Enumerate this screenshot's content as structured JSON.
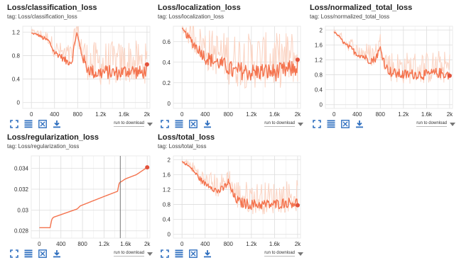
{
  "download_label": "run to download",
  "colors": {
    "line": "#f4734e",
    "band": "#fbd3c2",
    "grid": "#dddddd",
    "icon": "#2f6fbf"
  },
  "toolbar_icons": [
    "fit-domain-icon",
    "data-table-icon",
    "expand-icon",
    "download-icon"
  ],
  "chart_data": [
    {
      "type": "line",
      "title": "Loss/classification_loss",
      "tag": "tag: Loss/classification_loss",
      "xlim": [
        -150,
        2050
      ],
      "ylim": [
        -0.1,
        1.3
      ],
      "xticks": [
        0,
        400,
        800,
        1200,
        1600,
        2000
      ],
      "xtick_labels": [
        "0",
        "400",
        "800",
        "1.2k",
        "1.6k",
        "2k"
      ],
      "yticks": [
        0,
        0.4,
        0.8,
        1.2
      ],
      "ytick_labels": [
        "0",
        "0.4",
        "0.8",
        "1.2"
      ],
      "series": [
        {
          "x": [
            0,
            100,
            200,
            300,
            400,
            500,
            600,
            700,
            780,
            850,
            950,
            1100,
            1300,
            1500,
            1700,
            1900,
            2000
          ],
          "y": [
            1.18,
            1.16,
            1.1,
            1.05,
            0.85,
            0.8,
            0.7,
            0.7,
            1.2,
            0.9,
            0.6,
            0.5,
            0.52,
            0.5,
            0.55,
            0.5,
            0.55
          ],
          "band": [
            0.05,
            0.05,
            0.1,
            0.1,
            0.15,
            0.15,
            0.2,
            0.2,
            0.2,
            0.25,
            0.3,
            0.35,
            0.35,
            0.35,
            0.35,
            0.35,
            0.3
          ]
        }
      ]
    },
    {
      "type": "line",
      "title": "Loss/localization_loss",
      "tag": "tag: Loss/localization_loss",
      "xlim": [
        -150,
        2050
      ],
      "ylim": [
        -0.05,
        0.75
      ],
      "xticks": [
        0,
        400,
        800,
        1200,
        1600,
        2000
      ],
      "xtick_labels": [
        "0",
        "400",
        "800",
        "1.2k",
        "1.6k",
        "2k"
      ],
      "yticks": [
        0,
        0.2,
        0.4,
        0.6
      ],
      "ytick_labels": [
        "0",
        "0.2",
        "0.4",
        "0.6"
      ],
      "series": [
        {
          "x": [
            0,
            100,
            200,
            300,
            400,
            500,
            600,
            700,
            800,
            900,
            1000,
            1200,
            1400,
            1600,
            1800,
            2000
          ],
          "y": [
            0.72,
            0.65,
            0.58,
            0.52,
            0.45,
            0.42,
            0.4,
            0.38,
            0.35,
            0.3,
            0.32,
            0.3,
            0.31,
            0.3,
            0.32,
            0.35
          ],
          "band": [
            0.05,
            0.1,
            0.15,
            0.15,
            0.2,
            0.2,
            0.2,
            0.2,
            0.25,
            0.25,
            0.25,
            0.25,
            0.25,
            0.25,
            0.25,
            0.25
          ]
        }
      ]
    },
    {
      "type": "line",
      "title": "Loss/normalized_total_loss",
      "tag": "tag: Loss/normalized_total_loss",
      "xlim": [
        -150,
        2050
      ],
      "ylim": [
        -0.1,
        2.1
      ],
      "xticks": [
        0,
        400,
        800,
        1200,
        1600,
        2000
      ],
      "xtick_labels": [
        "0",
        "400",
        "800",
        "1.2k",
        "1.6k",
        "2k"
      ],
      "yticks": [
        0,
        0.4,
        0.8,
        1.2,
        1.6,
        2.0
      ],
      "ytick_labels": [
        "0",
        "0.4",
        "0.8",
        "1.2",
        "1.6",
        "2"
      ],
      "series": [
        {
          "x": [
            0,
            100,
            200,
            300,
            400,
            500,
            600,
            700,
            800,
            900,
            1000,
            1200,
            1400,
            1600,
            1800,
            2000
          ],
          "y": [
            1.95,
            1.8,
            1.6,
            1.5,
            1.35,
            1.3,
            1.2,
            1.2,
            1.5,
            1.0,
            0.85,
            0.8,
            0.82,
            0.8,
            0.85,
            0.8
          ],
          "band": [
            0.05,
            0.1,
            0.15,
            0.2,
            0.2,
            0.25,
            0.3,
            0.3,
            0.3,
            0.35,
            0.4,
            0.4,
            0.4,
            0.4,
            0.4,
            0.4
          ]
        }
      ]
    },
    {
      "type": "line",
      "title": "Loss/regularization_loss",
      "tag": "tag: Loss/regularization_loss",
      "xlim": [
        -150,
        2050
      ],
      "ylim": [
        0.0273,
        0.0352
      ],
      "xticks": [
        0,
        400,
        800,
        1200,
        1600,
        2000
      ],
      "xtick_labels": [
        "0",
        "400",
        "800",
        "1.2k",
        "1.6k",
        "2k"
      ],
      "yticks": [
        0.028,
        0.03,
        0.032,
        0.034
      ],
      "ytick_labels": [
        "0.028",
        "0.03",
        "0.032",
        "0.034"
      ],
      "series": [
        {
          "x": [
            0,
            200,
            230,
            260,
            700,
            760,
            1200,
            1400,
            1450,
            1480,
            1600,
            1800,
            2000
          ],
          "y": [
            0.0283,
            0.0283,
            0.0291,
            0.0293,
            0.0301,
            0.0304,
            0.0313,
            0.0317,
            0.0318,
            0.0326,
            0.033,
            0.0334,
            0.0341
          ],
          "band": [
            0,
            0,
            0,
            0,
            0,
            0,
            0,
            0,
            0,
            0,
            0,
            0,
            0
          ]
        }
      ]
    },
    {
      "type": "line",
      "title": "Loss/total_loss",
      "tag": "tag: Loss/total_loss",
      "xlim": [
        -150,
        2050
      ],
      "ylim": [
        -0.1,
        2.1
      ],
      "xticks": [
        0,
        400,
        800,
        1200,
        1600,
        2000
      ],
      "xtick_labels": [
        "0",
        "400",
        "800",
        "1.2k",
        "1.6k",
        "2k"
      ],
      "yticks": [
        0,
        0.4,
        0.8,
        1.2,
        1.6,
        2.0
      ],
      "ytick_labels": [
        "0",
        "0.4",
        "0.8",
        "1.2",
        "1.6",
        "2"
      ],
      "series": [
        {
          "x": [
            0,
            100,
            200,
            300,
            400,
            500,
            600,
            700,
            800,
            900,
            1000,
            1200,
            1400,
            1600,
            1800,
            2000
          ],
          "y": [
            1.95,
            1.85,
            1.7,
            1.5,
            1.35,
            1.3,
            1.15,
            1.2,
            1.4,
            1.0,
            0.85,
            0.8,
            0.8,
            0.8,
            0.85,
            0.85
          ],
          "band": [
            0.05,
            0.1,
            0.15,
            0.2,
            0.2,
            0.25,
            0.3,
            0.3,
            0.3,
            0.35,
            0.4,
            0.4,
            0.4,
            0.4,
            0.4,
            0.4
          ]
        }
      ]
    }
  ]
}
